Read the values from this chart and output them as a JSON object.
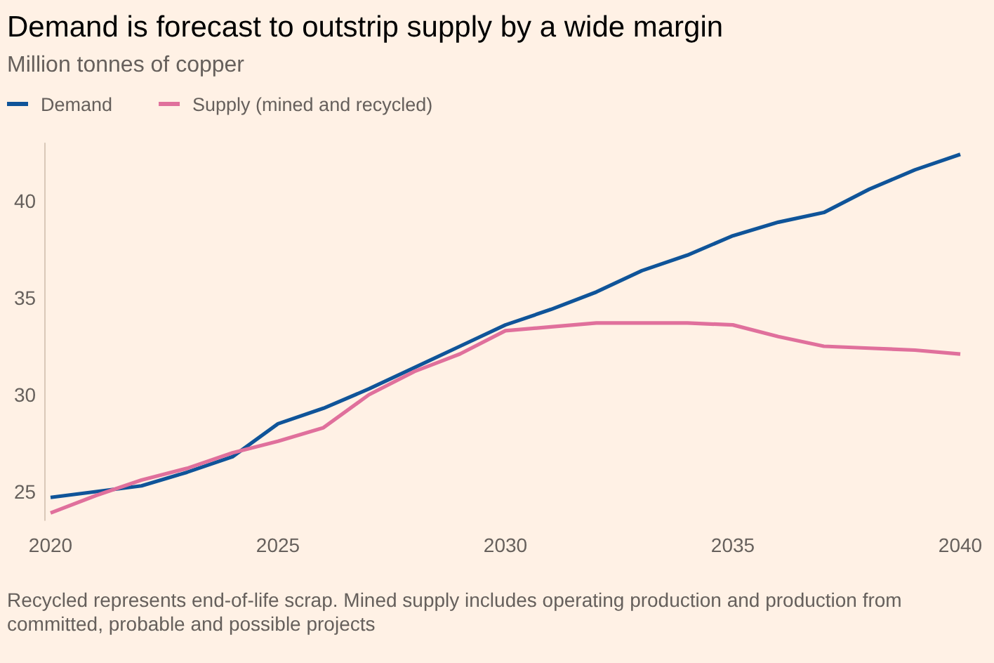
{
  "chart_data": {
    "type": "line",
    "title": "Demand is forecast to outstrip supply by a wide margin",
    "subtitle": "Million tonnes of copper",
    "x": [
      2020,
      2021,
      2022,
      2023,
      2024,
      2025,
      2026,
      2027,
      2028,
      2029,
      2030,
      2031,
      2032,
      2033,
      2034,
      2035,
      2036,
      2037,
      2038,
      2039,
      2040
    ],
    "series": [
      {
        "name": "Demand",
        "color": "#0f5499",
        "values": [
          24.7,
          25.0,
          25.3,
          26.0,
          26.8,
          28.5,
          29.3,
          30.3,
          31.4,
          32.5,
          33.6,
          34.4,
          35.3,
          36.4,
          37.2,
          38.2,
          38.9,
          39.4,
          40.6,
          41.6,
          42.4
        ]
      },
      {
        "name": "Supply (mined and recycled)",
        "color": "#e0709c",
        "values": [
          23.9,
          24.8,
          25.6,
          26.2,
          27.0,
          27.6,
          28.3,
          30.0,
          31.2,
          32.1,
          33.3,
          33.5,
          33.7,
          33.7,
          33.7,
          33.6,
          33.0,
          32.5,
          32.4,
          32.3,
          32.1
        ]
      }
    ],
    "xlim": [
      2020,
      2040
    ],
    "xticks": [
      2020,
      2025,
      2030,
      2035,
      2040
    ],
    "ylim": [
      23.5,
      43
    ],
    "yticks": [
      25,
      30,
      35,
      40
    ],
    "legend": "top left",
    "annotations": [
      "Recycled represents end-of-life scrap. Mined supply includes operating production and production from committed, probable and possible projects"
    ]
  }
}
